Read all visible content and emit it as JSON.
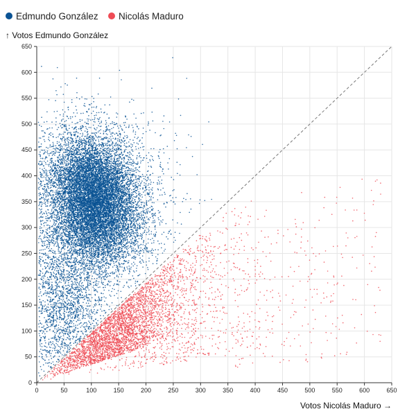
{
  "chart_data": {
    "type": "scatter",
    "xlabel": "Votos Nicolás Maduro →",
    "ylabel": "↑ Votos Edmundo González",
    "xlim": [
      0,
      650
    ],
    "ylim": [
      0,
      650
    ],
    "xticks": [
      0,
      50,
      100,
      150,
      200,
      250,
      300,
      350,
      400,
      450,
      500,
      550,
      600,
      650
    ],
    "yticks": [
      0,
      50,
      100,
      150,
      200,
      250,
      300,
      350,
      400,
      450,
      500,
      550,
      600,
      650
    ],
    "grid": true,
    "legend_position": "top-left",
    "reference_line": "y = x",
    "series": [
      {
        "name": "Edmundo González",
        "color": "#0b5394",
        "region": "above the y = x line",
        "approx_center": [
          110,
          350
        ],
        "approx_count": 16000
      },
      {
        "name": "Nicolás Maduro",
        "color": "#ef4b55",
        "region": "below the y = x line",
        "approx_center": [
          150,
          130
        ],
        "approx_count": 4500
      }
    ]
  }
}
